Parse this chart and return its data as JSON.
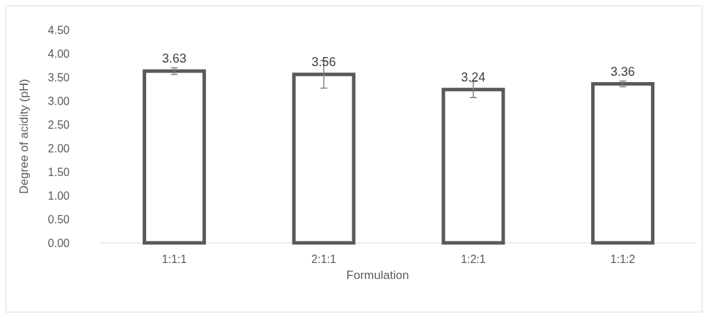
{
  "chart_data": {
    "type": "bar",
    "xlabel": "Formulation",
    "ylabel": "Degree of acidity (pH)",
    "categories": [
      "1:1:1",
      "2:1:1",
      "1:2:1",
      "1:1:2"
    ],
    "values": [
      3.63,
      3.56,
      3.24,
      3.36
    ],
    "errors": [
      0.07,
      0.29,
      0.17,
      0.06
    ],
    "color": "#595959",
    "ylim": [
      0,
      4.5
    ],
    "yticks": [
      {
        "value": 0,
        "label": "0.00"
      },
      {
        "value": 0.5,
        "label": "0.50"
      },
      {
        "value": 1,
        "label": "1.00"
      },
      {
        "value": 1.5,
        "label": "1.50"
      },
      {
        "value": 2,
        "label": "2.00"
      },
      {
        "value": 2.5,
        "label": "2.50"
      },
      {
        "value": 3,
        "label": "3.00"
      },
      {
        "value": 3.5,
        "label": "3.50"
      },
      {
        "value": 4,
        "label": "4.00"
      },
      {
        "value": 4.5,
        "label": "4.50"
      }
    ],
    "data_labels": true
  }
}
